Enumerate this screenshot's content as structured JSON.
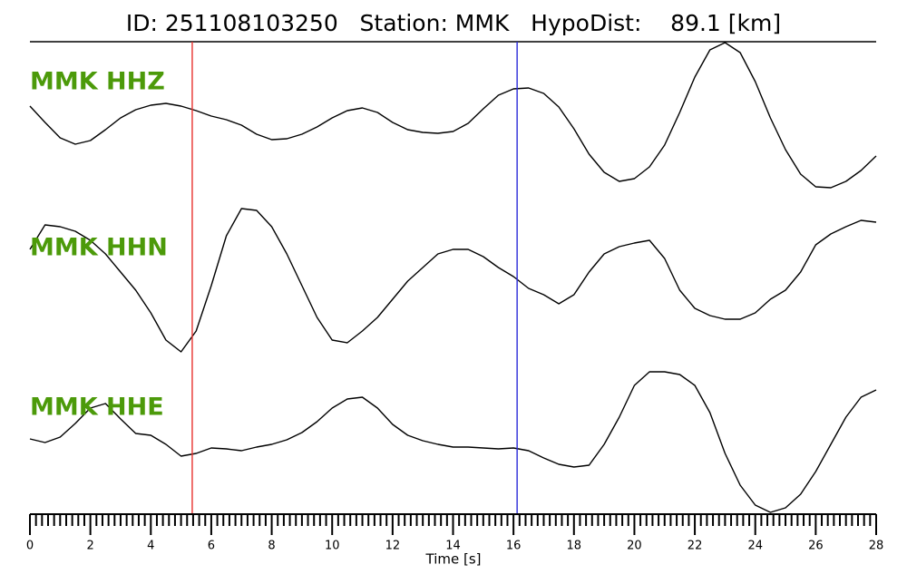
{
  "chart_data": {
    "type": "line",
    "title": "ID: 251108103250   Station: MMK   HypoDist:    89.1 [km]",
    "x_label": "Time [s]",
    "x": [
      0,
      0.5,
      1,
      1.5,
      2,
      2.5,
      3,
      3.5,
      4,
      4.5,
      5,
      5.5,
      6,
      6.5,
      7,
      7.5,
      8,
      8.5,
      9,
      9.5,
      10,
      10.5,
      11,
      11.5,
      12,
      12.5,
      13,
      13.5,
      14,
      14.5,
      15,
      15.5,
      16,
      16.5,
      17,
      17.5,
      18,
      18.5,
      19,
      19.5,
      20,
      20.5,
      21,
      21.5,
      22,
      22.5,
      23,
      23.5,
      24,
      24.5,
      25,
      25.5,
      26,
      26.5,
      27,
      27.5,
      28
    ],
    "xlim": [
      0,
      28
    ],
    "xticks": [
      0,
      2,
      4,
      6,
      8,
      10,
      12,
      14,
      16,
      18,
      20,
      22,
      24,
      26,
      28
    ],
    "minor_ticks_per_major": 10,
    "ylim": [
      -90,
      90
    ],
    "label_color": "#4c9a0a",
    "series": [
      {
        "name": "MMK HHZ",
        "color": "#000000",
        "values": [
          10,
          -8,
          -25,
          -32,
          -28,
          -16,
          -3,
          6,
          11,
          13,
          10,
          5,
          -1,
          -5,
          -11,
          -21,
          -27,
          -26,
          -21,
          -13,
          -3,
          5,
          8,
          3,
          -8,
          -16,
          -19,
          -20,
          -18,
          -9,
          7,
          22,
          29,
          30,
          24,
          9,
          -15,
          -43,
          -63,
          -73,
          -70,
          -57,
          -33,
          3,
          42,
          72,
          80,
          69,
          37,
          -3,
          -38,
          -65,
          -79,
          -80,
          -73,
          -61,
          -45
        ]
      },
      {
        "name": "MMK HHN",
        "color": "#000000",
        "values": [
          35,
          62,
          60,
          55,
          45,
          30,
          10,
          -10,
          -35,
          -65,
          -78,
          -55,
          -5,
          50,
          80,
          78,
          60,
          30,
          -5,
          -40,
          -65,
          -68,
          -55,
          -40,
          -20,
          0,
          15,
          30,
          35,
          35,
          27,
          15,
          5,
          -8,
          -15,
          -25,
          -15,
          10,
          30,
          38,
          42,
          45,
          25,
          -10,
          -30,
          -38,
          -42,
          -42,
          -35,
          -20,
          -10,
          10,
          40,
          52,
          60,
          67,
          65
        ]
      },
      {
        "name": "MMK HHE",
        "color": "#000000",
        "values": [
          2,
          -2,
          4,
          19,
          36,
          41,
          24,
          8,
          6,
          -4,
          -17,
          -14,
          -8,
          -9,
          -11,
          -7,
          -4,
          1,
          9,
          21,
          36,
          46,
          48,
          36,
          18,
          6,
          0,
          -4,
          -7,
          -7,
          -8,
          -9,
          -8,
          -11,
          -19,
          -26,
          -29,
          -27,
          -4,
          26,
          61,
          76,
          76,
          73,
          61,
          31,
          -14,
          -49,
          -71,
          -79,
          -74,
          -59,
          -34,
          -4,
          26,
          48,
          56
        ]
      }
    ],
    "markers": [
      {
        "value": 5.37,
        "color": "#e8322e"
      },
      {
        "value": 16.12,
        "color": "#2a2ad8"
      }
    ]
  }
}
